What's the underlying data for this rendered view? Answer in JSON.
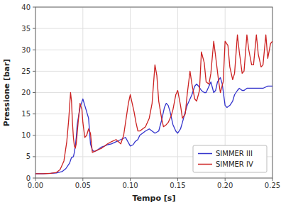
{
  "chart_data": {
    "type": "line",
    "xlabel": "Tempo [s]",
    "ylabel": "Pressione [bar]",
    "xlim": [
      0.0,
      0.25
    ],
    "ylim": [
      0,
      40
    ],
    "xticks": [
      {
        "value": 0.0,
        "label": "0.00"
      },
      0.05,
      {
        "value": 0.1,
        "label": "0.10"
      },
      0.15,
      {
        "value": 0.2,
        "label": "0.20"
      },
      0.25
    ],
    "yticks": [
      0,
      5,
      10,
      15,
      20,
      25,
      30,
      35,
      40
    ],
    "grid": true,
    "legend": "lower right",
    "series": [
      {
        "name": "SIMMER III",
        "color": "#3333cc",
        "x": [
          0.0,
          0.008,
          0.016,
          0.022,
          0.028,
          0.032,
          0.036,
          0.038,
          0.04,
          0.041,
          0.042,
          0.043,
          0.044,
          0.047,
          0.05,
          0.052,
          0.054,
          0.056,
          0.058,
          0.06,
          0.062,
          0.065,
          0.068,
          0.07,
          0.073,
          0.076,
          0.08,
          0.085,
          0.09,
          0.095,
          0.1,
          0.103,
          0.105,
          0.108,
          0.11,
          0.113,
          0.116,
          0.12,
          0.123,
          0.126,
          0.13,
          0.133,
          0.136,
          0.138,
          0.14,
          0.142,
          0.145,
          0.148,
          0.15,
          0.153,
          0.155,
          0.158,
          0.16,
          0.163,
          0.165,
          0.168,
          0.17,
          0.172,
          0.175,
          0.178,
          0.18,
          0.182,
          0.185,
          0.188,
          0.19,
          0.192,
          0.195,
          0.197,
          0.2,
          0.202,
          0.205,
          0.208,
          0.21,
          0.213,
          0.215,
          0.218,
          0.22,
          0.223,
          0.225,
          0.23,
          0.235,
          0.24,
          0.245,
          0.25
        ],
        "values": [
          1.0,
          1.0,
          1.1,
          1.2,
          1.5,
          2.2,
          3.5,
          4.8,
          5.0,
          6.0,
          7.5,
          9.5,
          12.5,
          16.5,
          18.5,
          17.0,
          15.5,
          14.0,
          8.0,
          6.5,
          6.2,
          6.5,
          7.0,
          7.3,
          7.5,
          7.8,
          8.0,
          8.5,
          9.0,
          9.5,
          7.5,
          7.8,
          8.5,
          9.0,
          10.0,
          10.5,
          11.0,
          11.5,
          11.0,
          10.5,
          11.0,
          13.5,
          16.5,
          17.5,
          17.0,
          15.5,
          12.5,
          11.0,
          10.5,
          11.5,
          13.0,
          15.5,
          17.0,
          18.5,
          19.5,
          21.5,
          22.0,
          21.5,
          20.5,
          20.0,
          20.0,
          21.0,
          22.5,
          20.0,
          20.5,
          22.5,
          23.5,
          22.0,
          17.0,
          16.5,
          17.0,
          18.0,
          19.5,
          20.5,
          21.0,
          20.5,
          20.5,
          21.0,
          21.0,
          21.0,
          21.0,
          21.0,
          21.5,
          21.5
        ]
      },
      {
        "name": "SIMMER IV",
        "color": "#cc2222",
        "x": [
          0.0,
          0.008,
          0.016,
          0.022,
          0.026,
          0.03,
          0.033,
          0.035,
          0.037,
          0.038,
          0.039,
          0.04,
          0.041,
          0.042,
          0.043,
          0.045,
          0.047,
          0.049,
          0.05,
          0.052,
          0.054,
          0.056,
          0.058,
          0.06,
          0.062,
          0.065,
          0.068,
          0.07,
          0.073,
          0.076,
          0.08,
          0.085,
          0.09,
          0.093,
          0.095,
          0.098,
          0.1,
          0.102,
          0.104,
          0.106,
          0.108,
          0.11,
          0.113,
          0.116,
          0.12,
          0.123,
          0.126,
          0.128,
          0.13,
          0.133,
          0.135,
          0.138,
          0.14,
          0.143,
          0.145,
          0.148,
          0.15,
          0.153,
          0.155,
          0.158,
          0.16,
          0.163,
          0.165,
          0.168,
          0.17,
          0.173,
          0.175,
          0.178,
          0.18,
          0.183,
          0.185,
          0.188,
          0.19,
          0.193,
          0.195,
          0.198,
          0.2,
          0.203,
          0.205,
          0.208,
          0.21,
          0.213,
          0.215,
          0.218,
          0.22,
          0.223,
          0.225,
          0.228,
          0.23,
          0.233,
          0.235,
          0.238,
          0.24,
          0.243,
          0.245,
          0.248,
          0.25
        ],
        "values": [
          1.0,
          1.0,
          1.1,
          1.3,
          2.0,
          4.0,
          8.5,
          13.5,
          20.0,
          18.0,
          13.0,
          9.5,
          7.5,
          7.0,
          8.0,
          13.0,
          17.5,
          16.0,
          13.0,
          9.5,
          10.0,
          11.5,
          10.5,
          6.0,
          6.2,
          6.5,
          6.8,
          7.0,
          7.5,
          8.0,
          8.5,
          9.0,
          8.0,
          10.0,
          13.0,
          17.5,
          19.5,
          17.5,
          15.5,
          13.0,
          11.0,
          11.0,
          11.5,
          12.0,
          14.0,
          17.5,
          26.5,
          24.0,
          18.0,
          14.0,
          12.0,
          12.5,
          13.0,
          14.5,
          16.0,
          19.5,
          20.5,
          17.0,
          14.0,
          15.0,
          19.5,
          25.0,
          22.0,
          18.5,
          18.0,
          20.5,
          29.5,
          27.0,
          22.5,
          22.0,
          24.5,
          32.0,
          28.5,
          23.0,
          20.0,
          22.5,
          32.0,
          31.0,
          26.0,
          23.0,
          24.5,
          33.5,
          29.5,
          24.5,
          25.0,
          33.5,
          30.0,
          26.5,
          26.5,
          33.5,
          29.0,
          26.0,
          26.5,
          33.5,
          28.0,
          31.5,
          32.0
        ]
      }
    ]
  }
}
